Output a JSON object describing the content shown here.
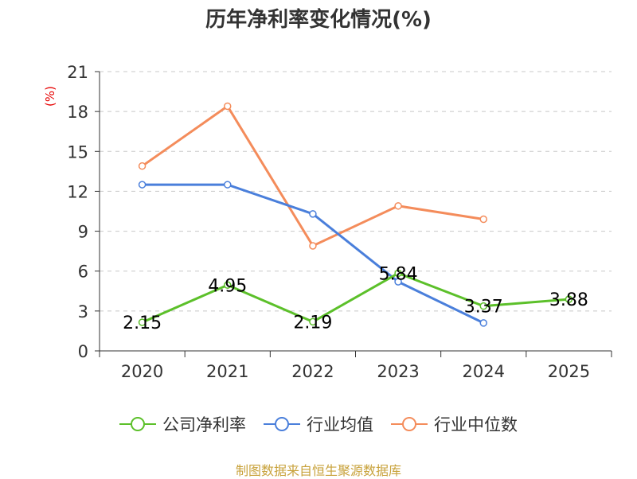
{
  "chart_data": {
    "type": "line",
    "title": "历年净利率变化情况(%)",
    "unit_label": "(%)",
    "categories": [
      "2020",
      "2021",
      "2022",
      "2023",
      "2024",
      "2025"
    ],
    "ylim": [
      0,
      21
    ],
    "yticks": [
      0,
      3,
      6,
      9,
      12,
      15,
      18,
      21
    ],
    "grid": true,
    "legend_position": "bottom",
    "series": [
      {
        "name": "公司净利率",
        "color": "#5cc02a",
        "values": [
          2.15,
          4.95,
          2.19,
          5.84,
          3.37,
          3.88
        ],
        "labels": [
          "2.15",
          "4.95",
          "2.19",
          "5.84",
          "3.37",
          "3.88"
        ],
        "show_labels": true
      },
      {
        "name": "行业均值",
        "color": "#4a7fdb",
        "values": [
          12.5,
          12.5,
          10.3,
          5.2,
          2.1,
          null
        ],
        "show_labels": false
      },
      {
        "name": "行业中位数",
        "color": "#f48c5b",
        "values": [
          13.9,
          18.4,
          7.9,
          10.9,
          9.9,
          null
        ],
        "show_labels": false
      }
    ]
  },
  "footer": {
    "source": "制图数据来自恒生聚源数据库"
  }
}
